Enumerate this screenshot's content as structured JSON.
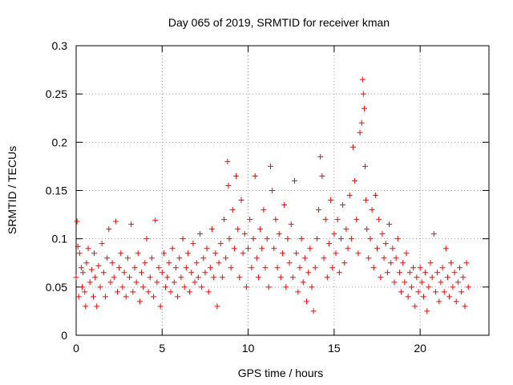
{
  "chart_data": {
    "type": "scatter",
    "title": "Day 065 of 2019, SRMTID for receiver kman",
    "xlabel": "GPS time / hours",
    "ylabel": "SRMTID / TECUs",
    "xlim": [
      0,
      24
    ],
    "ylim": [
      0,
      0.3
    ],
    "xticks": [
      0,
      5,
      10,
      15,
      20
    ],
    "xtick_labels": [
      "0",
      "5",
      "10",
      "15",
      "20"
    ],
    "yticks": [
      0,
      0.05,
      0.1,
      0.15,
      0.2,
      0.25,
      0.3
    ],
    "ytick_labels": [
      "0",
      "0.05",
      "0.1",
      "0.15",
      "0.2",
      "0.25",
      "0.3"
    ],
    "grid": true,
    "marker": "+",
    "color": "#ff0000",
    "series": [
      {
        "name": "SRMTID",
        "points": [
          [
            0.0,
            0.06
          ],
          [
            0.05,
            0.118
          ],
          [
            0.1,
            0.092
          ],
          [
            0.15,
            0.04
          ],
          [
            0.2,
            0.085
          ],
          [
            0.3,
            0.07
          ],
          [
            0.35,
            0.05
          ],
          [
            0.4,
            0.065
          ],
          [
            0.5,
            0.045
          ],
          [
            0.55,
            0.03
          ],
          [
            0.6,
            0.075
          ],
          [
            0.7,
            0.09
          ],
          [
            0.8,
            0.055
          ],
          [
            0.9,
            0.068
          ],
          [
            1.0,
            0.04
          ],
          [
            1.05,
            0.085
          ],
          [
            1.1,
            0.06
          ],
          [
            1.2,
            0.03
          ],
          [
            1.3,
            0.072
          ],
          [
            1.4,
            0.05
          ],
          [
            1.5,
            0.095
          ],
          [
            1.6,
            0.065
          ],
          [
            1.7,
            0.04
          ],
          [
            1.8,
            0.08
          ],
          [
            1.9,
            0.11
          ],
          [
            2.0,
            0.055
          ],
          [
            2.1,
            0.075
          ],
          [
            2.2,
            0.06
          ],
          [
            2.3,
            0.118
          ],
          [
            2.4,
            0.045
          ],
          [
            2.5,
            0.07
          ],
          [
            2.6,
            0.085
          ],
          [
            2.7,
            0.05
          ],
          [
            2.8,
            0.065
          ],
          [
            2.9,
            0.04
          ],
          [
            3.0,
            0.08
          ],
          [
            3.1,
            0.06
          ],
          [
            3.2,
            0.115
          ],
          [
            3.3,
            0.045
          ],
          [
            3.4,
            0.07
          ],
          [
            3.5,
            0.055
          ],
          [
            3.6,
            0.085
          ],
          [
            3.7,
            0.035
          ],
          [
            3.8,
            0.065
          ],
          [
            3.9,
            0.05
          ],
          [
            4.0,
            0.075
          ],
          [
            4.1,
            0.1
          ],
          [
            4.2,
            0.045
          ],
          [
            4.3,
            0.06
          ],
          [
            4.4,
            0.08
          ],
          [
            4.5,
            0.04
          ],
          [
            4.6,
            0.119
          ],
          [
            4.7,
            0.055
          ],
          [
            4.8,
            0.07
          ],
          [
            4.9,
            0.03
          ],
          [
            5.0,
            0.065
          ],
          [
            5.1,
            0.085
          ],
          [
            5.2,
            0.05
          ],
          [
            5.3,
            0.06
          ],
          [
            5.4,
            0.075
          ],
          [
            5.5,
            0.045
          ],
          [
            5.6,
            0.09
          ],
          [
            5.7,
            0.055
          ],
          [
            5.8,
            0.07
          ],
          [
            5.9,
            0.04
          ],
          [
            6.0,
            0.08
          ],
          [
            6.1,
            0.06
          ],
          [
            6.2,
            0.1
          ],
          [
            6.3,
            0.05
          ],
          [
            6.4,
            0.07
          ],
          [
            6.5,
            0.085
          ],
          [
            6.6,
            0.045
          ],
          [
            6.7,
            0.065
          ],
          [
            6.8,
            0.095
          ],
          [
            6.9,
            0.055
          ],
          [
            7.0,
            0.075
          ],
          [
            7.1,
            0.06
          ],
          [
            7.2,
            0.105
          ],
          [
            7.3,
            0.05
          ],
          [
            7.4,
            0.08
          ],
          [
            7.5,
            0.065
          ],
          [
            7.6,
            0.09
          ],
          [
            7.7,
            0.045
          ],
          [
            7.8,
            0.07
          ],
          [
            7.9,
            0.11
          ],
          [
            8.0,
            0.06
          ],
          [
            8.1,
            0.085
          ],
          [
            8.2,
            0.03
          ],
          [
            8.3,
            0.075
          ],
          [
            8.4,
            0.095
          ],
          [
            8.5,
            0.06
          ],
          [
            8.6,
            0.12
          ],
          [
            8.7,
            0.08
          ],
          [
            8.8,
            0.18
          ],
          [
            8.85,
            0.155
          ],
          [
            8.9,
            0.1
          ],
          [
            9.0,
            0.07
          ],
          [
            9.1,
            0.13
          ],
          [
            9.2,
            0.09
          ],
          [
            9.3,
            0.165
          ],
          [
            9.4,
            0.11
          ],
          [
            9.5,
            0.06
          ],
          [
            9.6,
            0.14
          ],
          [
            9.7,
            0.085
          ],
          [
            9.8,
            0.105
          ],
          [
            9.9,
            0.05
          ],
          [
            10.0,
            0.09
          ],
          [
            10.1,
            0.12
          ],
          [
            10.2,
            0.07
          ],
          [
            10.3,
            0.1
          ],
          [
            10.4,
            0.165
          ],
          [
            10.5,
            0.08
          ],
          [
            10.6,
            0.06
          ],
          [
            10.7,
            0.11
          ],
          [
            10.8,
            0.09
          ],
          [
            10.9,
            0.13
          ],
          [
            11.0,
            0.07
          ],
          [
            11.1,
            0.1
          ],
          [
            11.2,
            0.05
          ],
          [
            11.3,
            0.175
          ],
          [
            11.4,
            0.15
          ],
          [
            11.5,
            0.09
          ],
          [
            11.6,
            0.12
          ],
          [
            11.7,
            0.07
          ],
          [
            11.8,
            0.105
          ],
          [
            11.9,
            0.06
          ],
          [
            12.0,
            0.085
          ],
          [
            12.1,
            0.135
          ],
          [
            12.2,
            0.05
          ],
          [
            12.3,
            0.1
          ],
          [
            12.4,
            0.075
          ],
          [
            12.5,
            0.115
          ],
          [
            12.6,
            0.06
          ],
          [
            12.7,
            0.16
          ],
          [
            12.8,
            0.085
          ],
          [
            12.9,
            0.045
          ],
          [
            13.0,
            0.07
          ],
          [
            13.1,
            0.1
          ],
          [
            13.2,
            0.055
          ],
          [
            13.3,
            0.08
          ],
          [
            13.4,
            0.035
          ],
          [
            13.5,
            0.065
          ],
          [
            13.6,
            0.09
          ],
          [
            13.7,
            0.05
          ],
          [
            13.8,
            0.025
          ],
          [
            13.9,
            0.07
          ],
          [
            14.0,
            0.1
          ],
          [
            14.1,
            0.13
          ],
          [
            14.2,
            0.185
          ],
          [
            14.3,
            0.165
          ],
          [
            14.4,
            0.08
          ],
          [
            14.5,
            0.12
          ],
          [
            14.6,
            0.06
          ],
          [
            14.7,
            0.095
          ],
          [
            14.8,
            0.14
          ],
          [
            14.9,
            0.07
          ],
          [
            15.0,
            0.105
          ],
          [
            15.1,
            0.085
          ],
          [
            15.2,
            0.12
          ],
          [
            15.3,
            0.065
          ],
          [
            15.4,
            0.1
          ],
          [
            15.5,
            0.135
          ],
          [
            15.6,
            0.075
          ],
          [
            15.7,
            0.11
          ],
          [
            15.8,
            0.09
          ],
          [
            15.9,
            0.145
          ],
          [
            16.0,
            0.1
          ],
          [
            16.1,
            0.195
          ],
          [
            16.2,
            0.16
          ],
          [
            16.3,
            0.12
          ],
          [
            16.4,
            0.085
          ],
          [
            16.5,
            0.21
          ],
          [
            16.6,
            0.22
          ],
          [
            16.65,
            0.265
          ],
          [
            16.7,
            0.25
          ],
          [
            16.75,
            0.235
          ],
          [
            16.8,
            0.175
          ],
          [
            16.85,
            0.14
          ],
          [
            16.9,
            0.11
          ],
          [
            17.0,
            0.08
          ],
          [
            17.1,
            0.1
          ],
          [
            17.2,
            0.13
          ],
          [
            17.3,
            0.07
          ],
          [
            17.4,
            0.145
          ],
          [
            17.5,
            0.09
          ],
          [
            17.6,
            0.12
          ],
          [
            17.7,
            0.06
          ],
          [
            17.8,
            0.105
          ],
          [
            17.9,
            0.08
          ],
          [
            18.0,
            0.095
          ],
          [
            18.1,
            0.065
          ],
          [
            18.2,
            0.115
          ],
          [
            18.3,
            0.075
          ],
          [
            18.4,
            0.09
          ],
          [
            18.5,
            0.055
          ],
          [
            18.6,
            0.08
          ],
          [
            18.7,
            0.1
          ],
          [
            18.8,
            0.065
          ],
          [
            18.9,
            0.045
          ],
          [
            19.0,
            0.075
          ],
          [
            19.1,
            0.055
          ],
          [
            19.2,
            0.085
          ],
          [
            19.3,
            0.04
          ],
          [
            19.4,
            0.065
          ],
          [
            19.5,
            0.05
          ],
          [
            19.6,
            0.07
          ],
          [
            19.7,
            0.03
          ],
          [
            19.8,
            0.06
          ],
          [
            19.9,
            0.045
          ],
          [
            20.0,
            0.07
          ],
          [
            20.1,
            0.055
          ],
          [
            20.2,
            0.04
          ],
          [
            20.3,
            0.065
          ],
          [
            20.4,
            0.025
          ],
          [
            20.5,
            0.05
          ],
          [
            20.6,
            0.075
          ],
          [
            20.7,
            0.06
          ],
          [
            20.8,
            0.105
          ],
          [
            20.9,
            0.045
          ],
          [
            21.0,
            0.065
          ],
          [
            21.1,
            0.035
          ],
          [
            21.2,
            0.055
          ],
          [
            21.3,
            0.07
          ],
          [
            21.4,
            0.045
          ],
          [
            21.5,
            0.09
          ],
          [
            21.6,
            0.06
          ],
          [
            21.7,
            0.04
          ],
          [
            21.8,
            0.075
          ],
          [
            21.9,
            0.05
          ],
          [
            22.0,
            0.065
          ],
          [
            22.1,
            0.035
          ],
          [
            22.2,
            0.055
          ],
          [
            22.3,
            0.07
          ],
          [
            22.4,
            0.045
          ],
          [
            22.5,
            0.06
          ],
          [
            22.6,
            0.03
          ],
          [
            22.7,
            0.075
          ],
          [
            22.8,
            0.05
          ]
        ]
      }
    ]
  }
}
